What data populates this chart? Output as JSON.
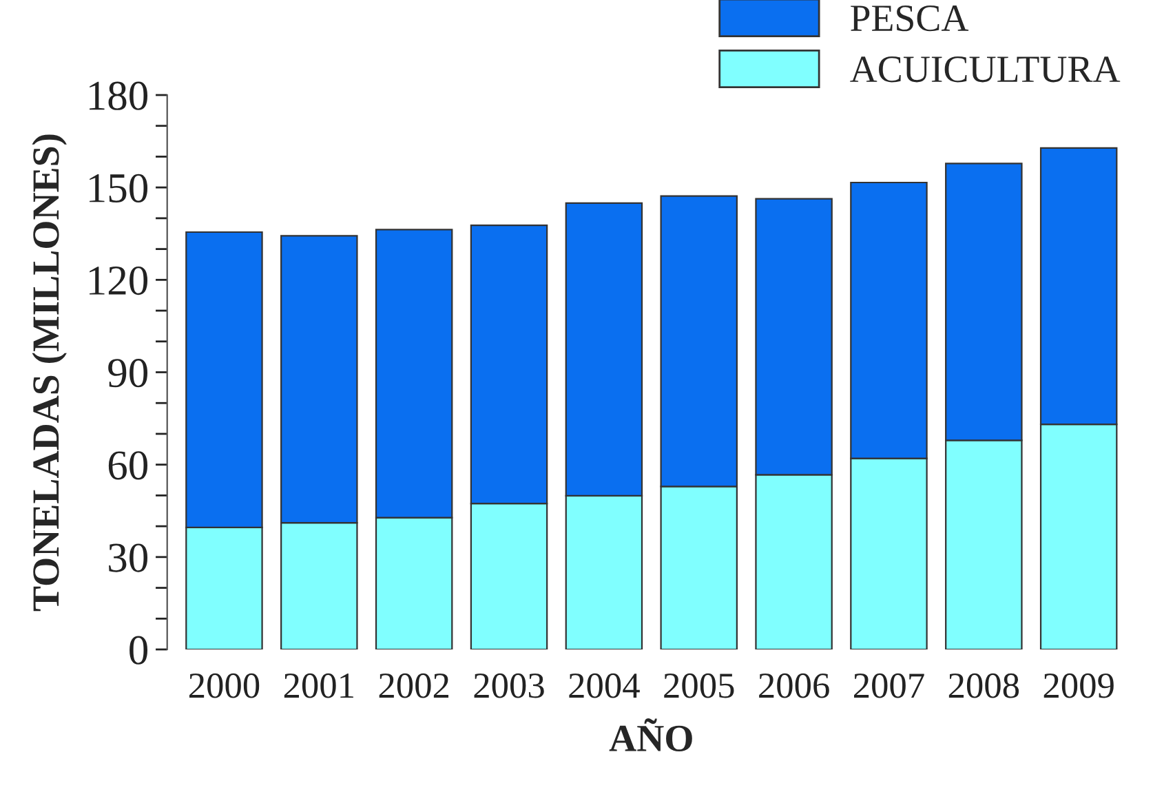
{
  "chart_data": {
    "type": "bar",
    "stacked": true,
    "xlabel": "AÑO",
    "ylabel": "TONELADAS (MILLONES)",
    "categories": [
      "2000",
      "2001",
      "2002",
      "2003",
      "2004",
      "2005",
      "2006",
      "2007",
      "2008",
      "2009"
    ],
    "series": [
      {
        "name": "ACUICULTURA",
        "color": "#80ffff",
        "values": [
          39.6,
          41.1,
          42.8,
          47.4,
          49.9,
          52.9,
          56.7,
          62.0,
          67.9,
          73.1
        ]
      },
      {
        "name": "PESCA",
        "color": "#0a6ff0",
        "values": [
          95.9,
          93.2,
          93.5,
          90.3,
          95.0,
          94.3,
          89.6,
          89.6,
          89.9,
          89.7
        ]
      }
    ],
    "ylim": [
      0,
      180
    ],
    "yticks": [
      0,
      {
        "value": 10,
        "label": null
      },
      {
        "value": 20,
        "label": null
      },
      30,
      {
        "value": 40,
        "label": null
      },
      {
        "value": 50,
        "label": null
      },
      60,
      {
        "value": 70,
        "label": null
      },
      {
        "value": 80,
        "label": null
      },
      90,
      {
        "value": 100,
        "label": null
      },
      {
        "value": 110,
        "label": null
      },
      120,
      {
        "value": 130,
        "label": null
      },
      {
        "value": 140,
        "label": null
      },
      150,
      {
        "value": 160,
        "label": null
      },
      {
        "value": 170,
        "label": null
      },
      180
    ],
    "grid": false,
    "legend": "top right"
  }
}
